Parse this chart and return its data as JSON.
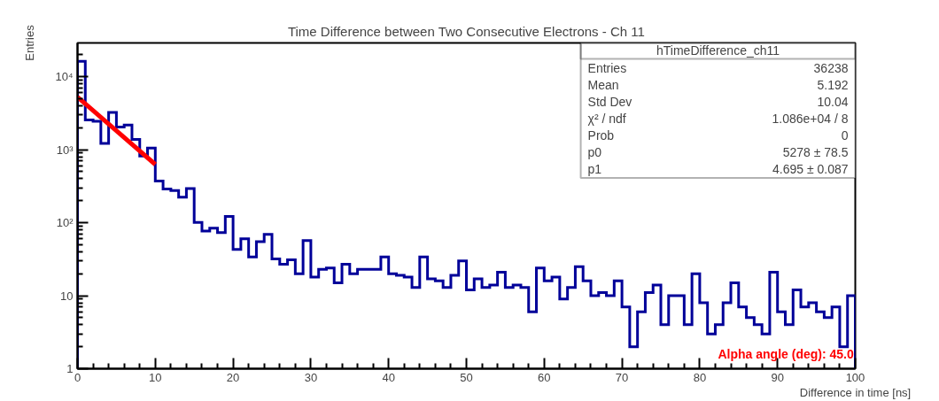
{
  "chart_data": {
    "type": "histogram",
    "title": "Time Difference between Two Consecutive Electrons - Ch 11",
    "xlabel": "Difference in time [ns]",
    "ylabel": "Entries",
    "bins": [
      0,
      1,
      2,
      3,
      4,
      5,
      6,
      7,
      8,
      9,
      10,
      11,
      12,
      13,
      14,
      15,
      16,
      17,
      18,
      19,
      20,
      21,
      22,
      23,
      24,
      25,
      26,
      27,
      28,
      29,
      30,
      31,
      32,
      33,
      34,
      35,
      36,
      37,
      38,
      39,
      40,
      41,
      42,
      43,
      44,
      45,
      46,
      47,
      48,
      49,
      50,
      51,
      52,
      53,
      54,
      55,
      56,
      57,
      58,
      59,
      60,
      61,
      62,
      63,
      64,
      65,
      66,
      67,
      68,
      69,
      70,
      71,
      72,
      73,
      74,
      75,
      76,
      77,
      78,
      79,
      80,
      81,
      82,
      83,
      84,
      85,
      86,
      87,
      88,
      89,
      90,
      91,
      92,
      93,
      94,
      95,
      96,
      97,
      98,
      99,
      100
    ],
    "series": [
      {
        "color": "#000099",
        "values": [
          16200,
          2560,
          2450,
          1220,
          3240,
          2050,
          2170,
          1380,
          820,
          1050,
          372,
          290,
          276,
          223,
          293,
          101,
          77,
          84,
          73,
          122,
          43,
          60,
          34,
          55,
          69,
          32,
          27,
          31,
          20,
          57,
          18,
          23,
          24,
          15,
          27,
          20,
          23,
          23,
          23,
          34,
          20,
          19,
          18,
          13,
          34,
          17,
          16,
          13,
          19,
          30,
          12,
          17,
          13,
          14,
          21,
          13,
          14,
          13,
          6,
          24,
          16,
          18,
          9,
          13,
          25,
          16,
          10,
          11,
          10,
          16,
          7,
          2,
          6,
          11,
          14,
          4,
          10,
          10,
          4,
          20,
          8,
          3,
          4,
          8,
          15,
          7,
          5,
          4,
          3,
          21,
          6,
          4,
          12,
          7,
          8,
          6,
          5,
          7,
          2,
          10
        ]
      },
      {
        "type": "line",
        "color": "#ff0000",
        "x": [
          0,
          10
        ],
        "values": [
          5278,
          628
        ]
      }
    ],
    "xlim": [
      0,
      100
    ],
    "ylim": [
      1,
      29000
    ],
    "xticks": [
      0,
      10,
      20,
      30,
      40,
      50,
      60,
      70,
      80,
      90,
      100
    ],
    "yticks": [
      1,
      10,
      {
        "value": 100,
        "label": "10²"
      },
      {
        "value": 1000,
        "label": "10³"
      },
      {
        "value": 10000,
        "label": "10⁴"
      }
    ],
    "log": "y",
    "grid": false,
    "annotations": [
      "hTimeDifference_ch11",
      "Entries",
      "36238",
      "Mean",
      "5.192",
      "Std Dev",
      "10.04",
      "χ² / ndf",
      "1.086e+04 / 8",
      "Prob",
      "0",
      "p0",
      "5278 ± 78.5",
      "p1",
      "4.695 ± 0.087",
      "Alpha angle (deg): 45.0"
    ]
  }
}
